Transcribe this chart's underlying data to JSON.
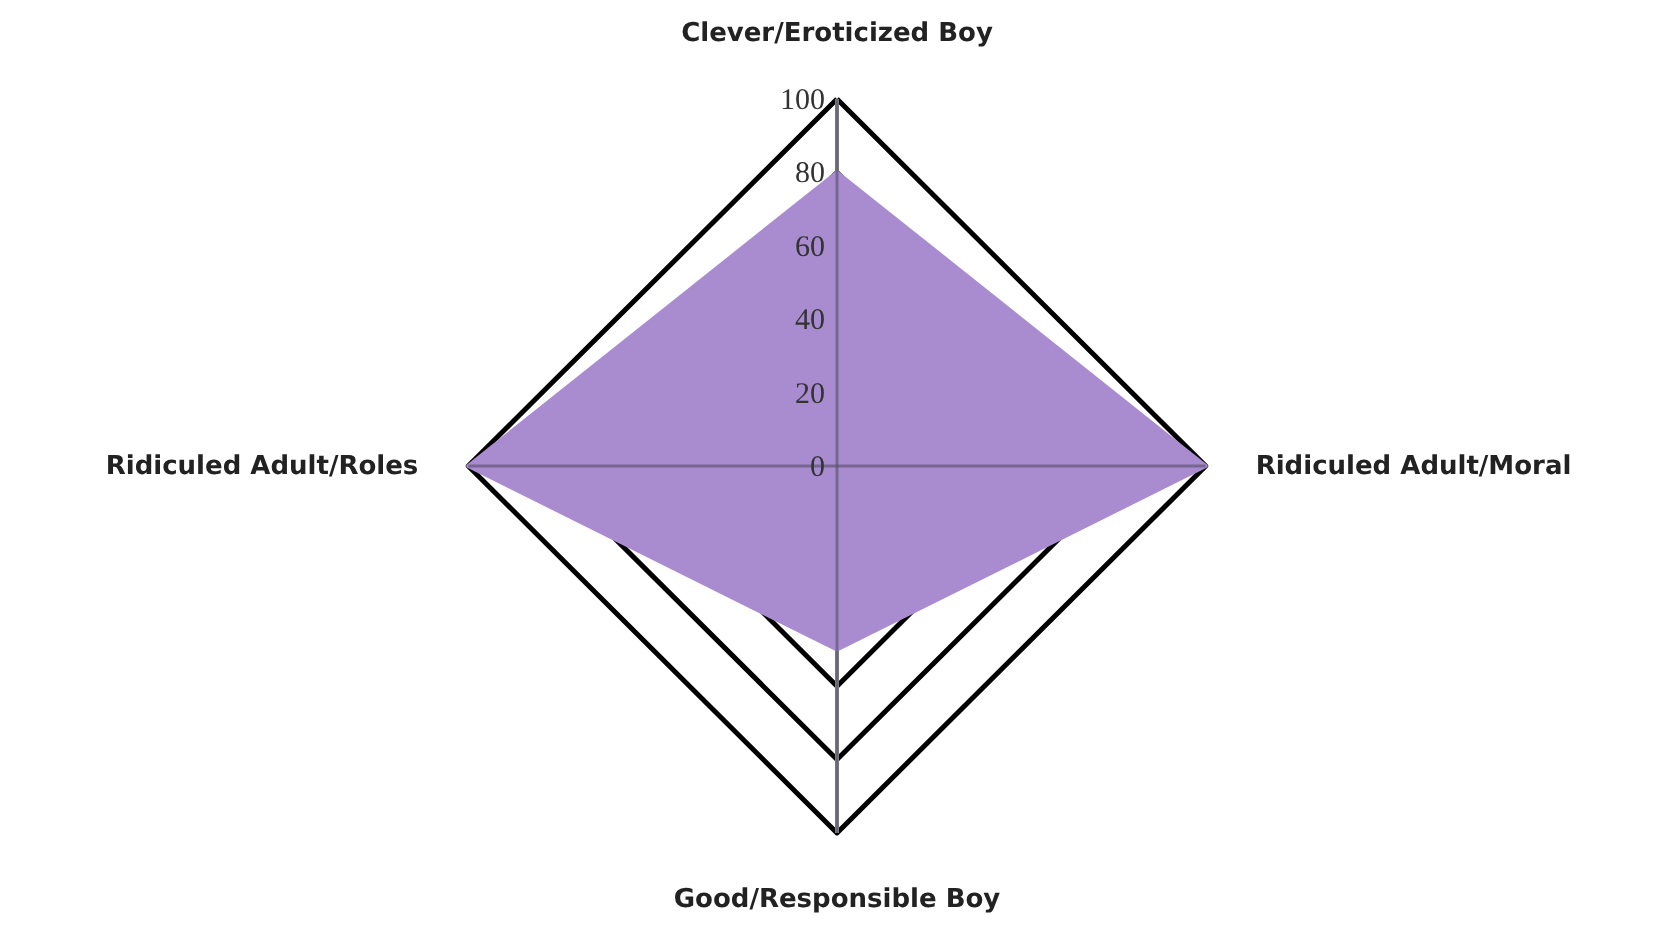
{
  "chart_data": {
    "type": "radar",
    "categories": [
      "Clever/Eroticized Boy",
      "Ridiculed Adult/Moral",
      "Good/Responsible Boy",
      "Ridiculed Adult/Roles"
    ],
    "series": [
      {
        "type": "area",
        "color": "#a98bd0",
        "values": [
          80,
          100,
          50,
          100
        ]
      }
    ],
    "ylim": [
      0,
      100
    ],
    "yticks": [
      0,
      20,
      40,
      60,
      80,
      100
    ],
    "grid": true
  }
}
